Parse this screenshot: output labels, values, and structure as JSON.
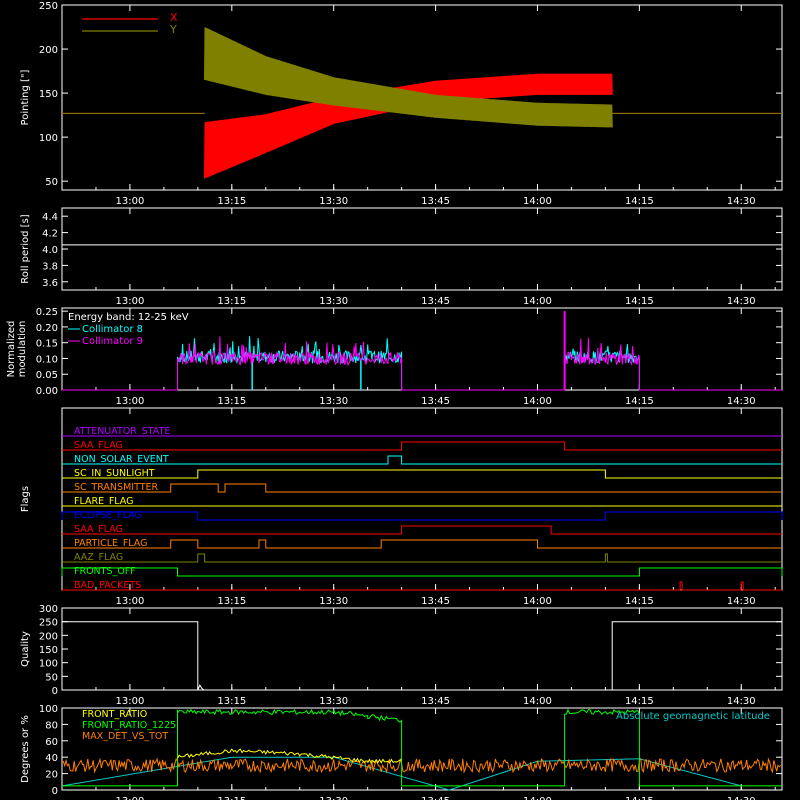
{
  "x_axis": {
    "range": [
      "12:50",
      "14:36"
    ],
    "ticks": [
      "13:00",
      "13:15",
      "13:30",
      "13:45",
      "14:00",
      "14:15",
      "14:30"
    ]
  },
  "colors": {
    "background": "#000000",
    "axes": "#ffffff",
    "x": "#ff0000",
    "y": "#808000",
    "collimator_8": "#00ffff",
    "collimator_9": "#ff00ff",
    "front_ratio": "#ffff00",
    "front_ratio_1225": "#00ff00",
    "max_det_vs_tot": "#ff8000",
    "latitude": "#00c8c8"
  },
  "chart_data": [
    {
      "id": "pointing",
      "type": "line",
      "ylabel": "Pointing [\"]",
      "ylim": [
        40,
        250
      ],
      "yticks": [
        "50",
        "100",
        "150",
        "200",
        "250"
      ],
      "legend_position": "top-left",
      "series": [
        {
          "name": "X",
          "points": [
            [
              "12:50",
              127
            ],
            [
              "13:11",
              127
            ],
            [
              "13:11",
              85
            ],
            [
              "13:20",
              104
            ],
            [
              "13:30",
              130
            ],
            [
              "13:45",
              152
            ],
            [
              "14:00",
              160
            ],
            [
              "14:11",
              160
            ],
            [
              "14:11",
              127
            ],
            [
              "14:36",
              127
            ]
          ],
          "oscillation_amplitude": [
            0,
            0,
            32,
            22,
            15,
            12,
            12,
            12,
            0,
            0
          ]
        },
        {
          "name": "Y",
          "points": [
            [
              "12:50",
              127
            ],
            [
              "13:11",
              127
            ],
            [
              "13:11",
              195
            ],
            [
              "13:20",
              170
            ],
            [
              "13:30",
              152
            ],
            [
              "13:45",
              135
            ],
            [
              "14:00",
              126
            ],
            [
              "14:11",
              124
            ],
            [
              "14:11",
              127
            ],
            [
              "14:36",
              127
            ]
          ],
          "oscillation_amplitude": [
            0,
            0,
            30,
            22,
            16,
            13,
            13,
            13,
            0,
            0
          ]
        }
      ]
    },
    {
      "id": "roll_period",
      "type": "line",
      "ylabel": "Roll period [s]",
      "ylim": [
        3.5,
        4.5
      ],
      "yticks": [
        "3.6",
        "3.8",
        "4.0",
        "4.2",
        "4.4"
      ],
      "series": [
        {
          "points": [
            [
              "12:50",
              4.05
            ],
            [
              "14:36",
              4.05
            ]
          ]
        }
      ]
    },
    {
      "id": "modulation",
      "type": "line",
      "ylabel": [
        "Normalized",
        "modulation"
      ],
      "ylim": [
        0,
        0.26
      ],
      "yticks": [
        "0.00",
        "0.05",
        "0.10",
        "0.15",
        "0.20",
        "0.25"
      ],
      "annotation": "Energy band: 12-25 keV",
      "series": [
        {
          "name": "Collimator 8",
          "segments": [
            {
              "start": "13:07",
              "end": "13:40",
              "level": 0.105
            },
            {
              "start": "14:04",
              "end": "14:15",
              "level": 0.105
            }
          ],
          "dips": [
            "13:18",
            "13:34"
          ]
        },
        {
          "name": "Collimator 9",
          "segments": [
            {
              "start": "13:07",
              "end": "13:40",
              "level": 0.1
            },
            {
              "start": "14:04",
              "end": "14:15",
              "level": 0.1
            }
          ],
          "spike": {
            "time": "14:04",
            "value": 0.25
          }
        }
      ]
    },
    {
      "id": "flags",
      "type": "line",
      "ylabel": "Flags",
      "flags": [
        {
          "label": "ATTENUATOR_STATE",
          "color": "#b000ff",
          "highs": []
        },
        {
          "label": "SAA_FLAG",
          "color": "#ff0000",
          "highs": [
            [
              "13:40",
              "14:04"
            ]
          ]
        },
        {
          "label": "NON_SOLAR_EVENT",
          "color": "#00ffff",
          "highs": [
            [
              "13:38",
              "13:40"
            ]
          ]
        },
        {
          "label": "SC_IN_SUNLIGHT",
          "color": "#ffff00",
          "highs": [
            [
              "13:10",
              "14:10"
            ]
          ]
        },
        {
          "label": "SC_TRANSMITTER",
          "color": "#ff8000",
          "highs": [
            [
              "13:06",
              "13:13"
            ],
            [
              "13:14",
              "13:20"
            ]
          ]
        },
        {
          "label": "FLARE_FLAG",
          "color": "#ffff00",
          "highs": []
        },
        {
          "label": "ECLIPSE_FLAG",
          "color": "#0000ff",
          "highs": [
            [
              "12:50",
              "13:10"
            ],
            [
              "14:10",
              "14:36"
            ]
          ]
        },
        {
          "label": "SAA_FLAG",
          "color": "#ff0000",
          "highs": [
            [
              "13:40",
              "14:02"
            ]
          ]
        },
        {
          "label": "PARTICLE_FLAG",
          "color": "#ff8000",
          "highs": [
            [
              "13:06",
              "13:10"
            ],
            [
              "13:19",
              "13:20"
            ],
            [
              "13:37",
              "14:00"
            ]
          ]
        },
        {
          "label": "AAZ_FLAG",
          "color": "#808000",
          "highs": [
            [
              "13:10",
              "13:11"
            ],
            [
              "14:10",
              "14:10"
            ]
          ]
        },
        {
          "label": "FRONTS_OFF",
          "color": "#00ff00",
          "highs": [
            [
              "12:50",
              "13:07"
            ],
            [
              "14:15",
              "14:36"
            ]
          ]
        },
        {
          "label": "BAD_PACKETS",
          "color": "#ff0000",
          "highs": [
            [
              "14:21",
              "14:21"
            ],
            [
              "14:30",
              "14:30"
            ]
          ]
        }
      ]
    },
    {
      "id": "quality",
      "type": "line",
      "ylabel": "Quality",
      "ylim": [
        0,
        300
      ],
      "yticks": [
        "0",
        "50",
        "100",
        "150",
        "200",
        "250",
        "300"
      ],
      "series": [
        {
          "points": [
            [
              "12:50",
              250
            ],
            [
              "13:10",
              250
            ],
            [
              "13:10",
              0
            ],
            [
              "14:11",
              0
            ],
            [
              "14:11",
              250
            ],
            [
              "14:36",
              250
            ]
          ]
        }
      ]
    },
    {
      "id": "ratios",
      "type": "line",
      "ylabel": "Degrees or %",
      "ylim": [
        0,
        100
      ],
      "yticks": [
        "0",
        "20",
        "40",
        "60",
        "80",
        "100"
      ],
      "legend_position": "top-left",
      "annotation": "Absolute geomagnetic latitude",
      "series": [
        {
          "name": "FRONT_RATIO",
          "points": [
            [
              "13:07",
              40
            ],
            [
              "13:15",
              48
            ],
            [
              "13:25",
              44
            ],
            [
              "13:35",
              35
            ],
            [
              "13:40",
              35
            ]
          ]
        },
        {
          "name": "FRONT_RATIO_1225",
          "points": [
            [
              "12:50",
              5
            ],
            [
              "13:07",
              5
            ],
            [
              "13:07",
              95
            ],
            [
              "13:30",
              95
            ],
            [
              "13:35",
              90
            ],
            [
              "13:40",
              85
            ],
            [
              "13:40",
              5
            ],
            [
              "14:04",
              5
            ],
            [
              "14:04",
              95
            ],
            [
              "14:15",
              95
            ],
            [
              "14:15",
              5
            ],
            [
              "14:36",
              5
            ]
          ]
        },
        {
          "name": "MAX_DET_VS_TOT",
          "points": [
            [
              "12:50",
              30
            ],
            [
              "14:36",
              30
            ]
          ]
        },
        {
          "name": "Absolute geomagnetic latitude",
          "points": [
            [
              "12:50",
              5
            ],
            [
              "13:15",
              40
            ],
            [
              "13:30",
              40
            ],
            [
              "13:47",
              0
            ],
            [
              "14:00",
              35
            ],
            [
              "14:15",
              38
            ],
            [
              "14:30",
              5
            ]
          ]
        }
      ]
    }
  ]
}
